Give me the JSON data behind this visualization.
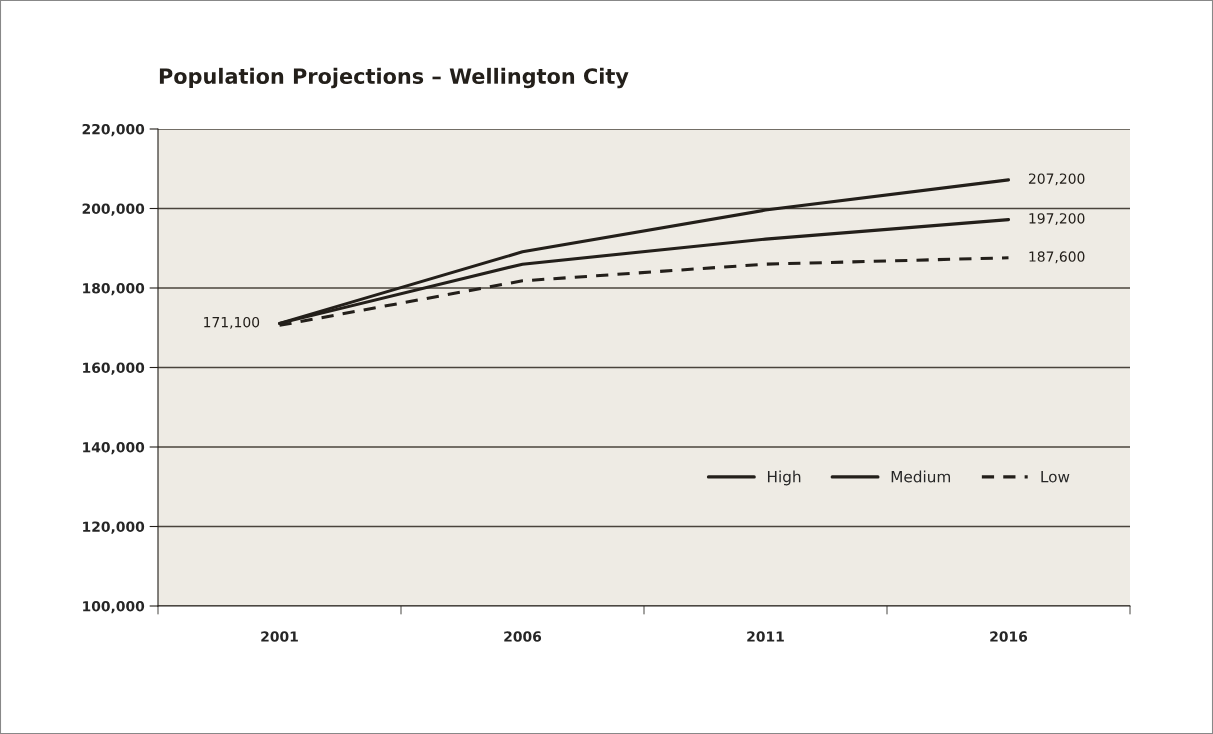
{
  "chart_data": {
    "type": "line",
    "title": "Population Projections – Wellington City",
    "categories": [
      "2001",
      "2006",
      "2011",
      "2016"
    ],
    "series": [
      {
        "name": "High",
        "color": "#231f1a",
        "line_style": "solid",
        "values": [
          171100,
          189100,
          199600,
          207200
        ],
        "value_labels": [
          "171,100",
          null,
          null,
          "207,200"
        ]
      },
      {
        "name": "Medium",
        "color": "#231f1a",
        "line_style": "solid",
        "values": [
          171100,
          186000,
          192300,
          197200
        ],
        "value_labels": [
          null,
          null,
          null,
          "197,200"
        ]
      },
      {
        "name": "Low",
        "color": "#231f1a",
        "line_style": "dashed",
        "values": [
          170600,
          181800,
          186000,
          187600
        ],
        "value_labels": [
          null,
          null,
          null,
          "187,600"
        ]
      }
    ],
    "ylim": [
      100000,
      220000
    ],
    "yticks": [
      {
        "value": 100000,
        "label": "100,000"
      },
      {
        "value": 120000,
        "label": "120,000"
      },
      {
        "value": 140000,
        "label": "140,000"
      },
      {
        "value": 160000,
        "label": "160,000"
      },
      {
        "value": 180000,
        "label": "180,000"
      },
      {
        "value": 200000,
        "label": "200,000"
      },
      {
        "value": 220000,
        "label": "220,000"
      }
    ],
    "grid": "y",
    "legend": "bottom right",
    "marker": "none"
  }
}
